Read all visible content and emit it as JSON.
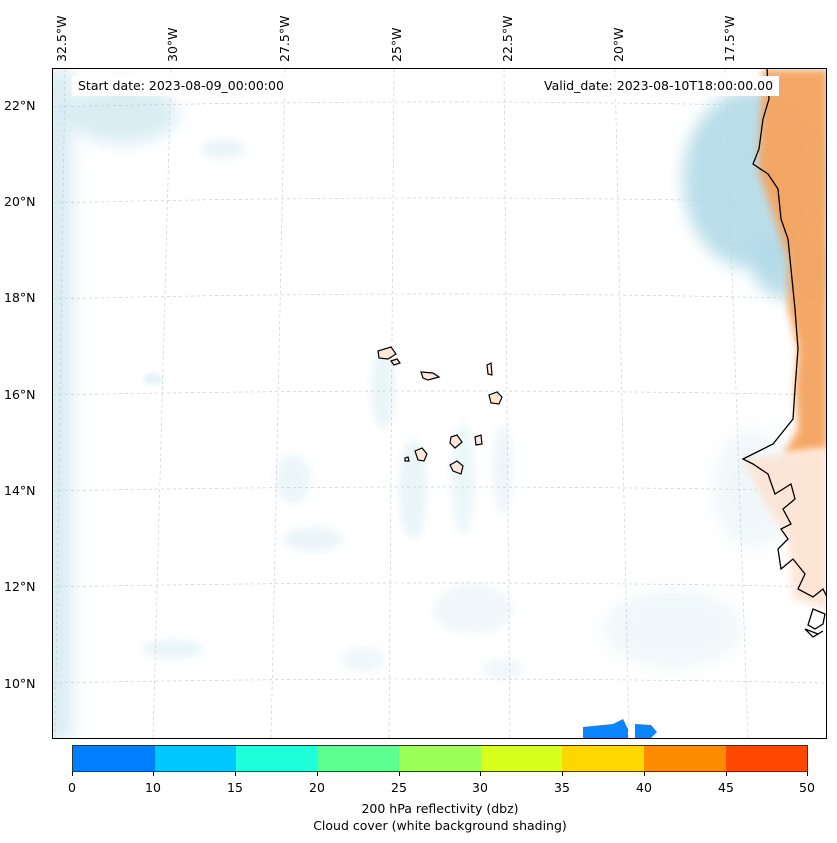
{
  "map": {
    "start_label": "Start date: 2023-08-09_00:00:00",
    "valid_label": "Valid_date: 2023-08-10T18:00:00.00",
    "lon_labels": [
      "32.5°W",
      "30°W",
      "27.5°W",
      "25°W",
      "22.5°W",
      "20°W",
      "17.5°W"
    ],
    "lat_labels": [
      "22°N",
      "20°N",
      "18°N",
      "16°N",
      "14°N",
      "12°N",
      "10°N"
    ],
    "layers": {
      "cloud_cover_color": "#add8e6",
      "reflectivity_land_color": "#f4a460",
      "coastline_color": "#000000",
      "island_fill": "#fde9dc",
      "radar_echo_color": "#0a84ff",
      "gridline_color": "#cccccc"
    }
  },
  "colorbar": {
    "ticks": [
      "0",
      "10",
      "15",
      "20",
      "25",
      "30",
      "35",
      "40",
      "45",
      "50"
    ],
    "colors": [
      "#0080ff",
      "#00c8ff",
      "#1effdc",
      "#5dff91",
      "#9cff55",
      "#d8ff1e",
      "#ffd700",
      "#ff8c00",
      "#ff4800"
    ],
    "label_line1": "200 hPa reflectivity (dbz)",
    "label_line2": "Cloud cover (white background shading)"
  }
}
